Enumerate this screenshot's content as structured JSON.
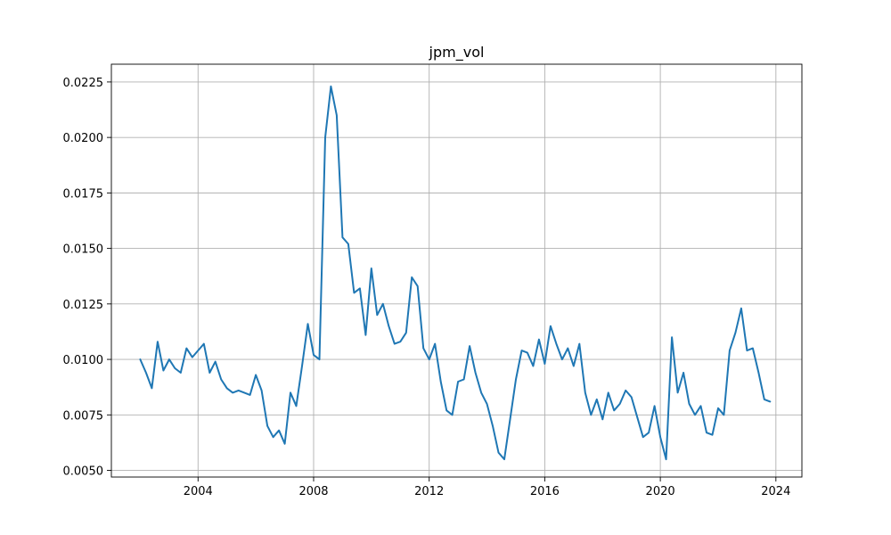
{
  "chart_data": {
    "type": "line",
    "title": "jpm_vol",
    "xlabel": "",
    "ylabel": "",
    "x_ticks": [
      "2004",
      "2008",
      "2012",
      "2016",
      "2020",
      "2024"
    ],
    "y_ticks": [
      "0.0050",
      "0.0075",
      "0.0100",
      "0.0125",
      "0.0150",
      "0.0175",
      "0.0200",
      "0.0225"
    ],
    "xlim": [
      2001.0,
      2024.9
    ],
    "ylim": [
      0.0047,
      0.0233
    ],
    "grid": true,
    "legend": "none",
    "color": "#1f77b4",
    "series": [
      {
        "x": [
          2002.0,
          2002.2,
          2002.4,
          2002.6,
          2002.8,
          2003.0,
          2003.2,
          2003.4,
          2003.6,
          2003.8,
          2004.0,
          2004.2,
          2004.4,
          2004.6,
          2004.8,
          2005.0,
          2005.2,
          2005.4,
          2005.6,
          2005.8,
          2006.0,
          2006.2,
          2006.4,
          2006.6,
          2006.8,
          2007.0,
          2007.2,
          2007.4,
          2007.6,
          2007.8,
          2008.0,
          2008.2,
          2008.4,
          2008.6,
          2008.8,
          2009.0,
          2009.2,
          2009.4,
          2009.6,
          2009.8,
          2010.0,
          2010.2,
          2010.4,
          2010.6,
          2010.8,
          2011.0,
          2011.2,
          2011.4,
          2011.6,
          2011.8,
          2012.0,
          2012.2,
          2012.4,
          2012.6,
          2012.8,
          2013.0,
          2013.2,
          2013.4,
          2013.6,
          2013.8,
          2014.0,
          2014.2,
          2014.4,
          2014.6,
          2014.8,
          2015.0,
          2015.2,
          2015.4,
          2015.6,
          2015.8,
          2016.0,
          2016.2,
          2016.4,
          2016.6,
          2016.8,
          2017.0,
          2017.2,
          2017.4,
          2017.6,
          2017.8,
          2018.0,
          2018.2,
          2018.4,
          2018.6,
          2018.8,
          2019.0,
          2019.2,
          2019.4,
          2019.6,
          2019.8,
          2020.0,
          2020.2,
          2020.4,
          2020.6,
          2020.8,
          2021.0,
          2021.2,
          2021.4,
          2021.6,
          2021.8,
          2022.0,
          2022.2,
          2022.4,
          2022.6,
          2022.8,
          2023.0,
          2023.2,
          2023.4,
          2023.6,
          2023.8
        ],
        "y": [
          0.01,
          0.0094,
          0.0087,
          0.0108,
          0.0095,
          0.01,
          0.0096,
          0.0094,
          0.0105,
          0.0101,
          0.0104,
          0.0107,
          0.0094,
          0.0099,
          0.0091,
          0.0087,
          0.0085,
          0.0086,
          0.0085,
          0.0084,
          0.0093,
          0.0086,
          0.007,
          0.0065,
          0.0068,
          0.0062,
          0.0085,
          0.0079,
          0.0097,
          0.0116,
          0.0102,
          0.01,
          0.02,
          0.0223,
          0.021,
          0.0155,
          0.0152,
          0.013,
          0.0132,
          0.0111,
          0.0141,
          0.012,
          0.0125,
          0.0115,
          0.0107,
          0.0108,
          0.0112,
          0.0137,
          0.0133,
          0.0105,
          0.01,
          0.0107,
          0.009,
          0.0077,
          0.0075,
          0.009,
          0.0091,
          0.0106,
          0.0094,
          0.0085,
          0.008,
          0.007,
          0.0058,
          0.0055,
          0.0073,
          0.0091,
          0.0104,
          0.0103,
          0.0097,
          0.0109,
          0.0098,
          0.0115,
          0.0107,
          0.01,
          0.0105,
          0.0097,
          0.0107,
          0.0085,
          0.0075,
          0.0082,
          0.0073,
          0.0085,
          0.0077,
          0.008,
          0.0086,
          0.0083,
          0.0074,
          0.0065,
          0.0067,
          0.0079,
          0.0065,
          0.0055,
          0.011,
          0.0085,
          0.0094,
          0.008,
          0.0075,
          0.0079,
          0.0067,
          0.0066,
          0.0078,
          0.0075,
          0.0104,
          0.0112,
          0.0123,
          0.0104,
          0.0105,
          0.0094,
          0.0082,
          0.0081
        ]
      }
    ]
  }
}
